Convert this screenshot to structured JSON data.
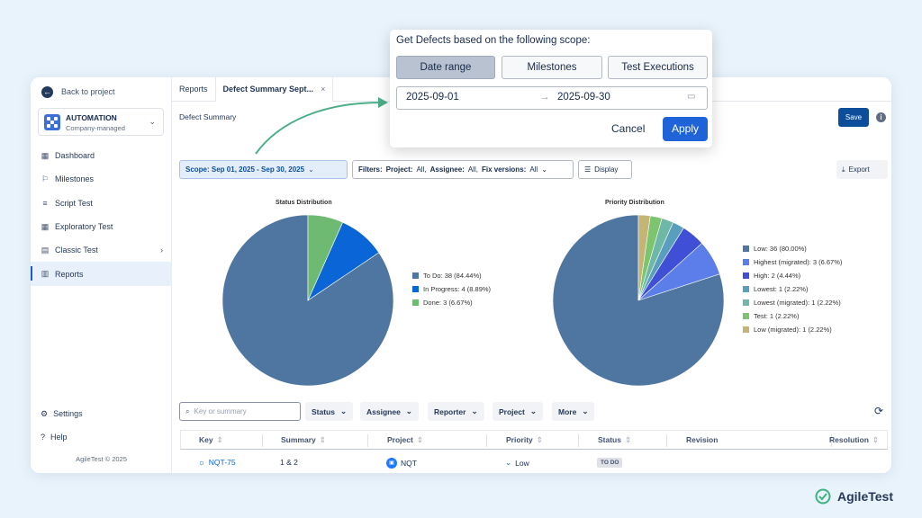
{
  "sidebar": {
    "back_label": "Back to project",
    "project_name": "AUTOMATION",
    "project_type": "Company-managed",
    "items": [
      {
        "label": "Dashboard",
        "icon": "dashboard-icon"
      },
      {
        "label": "Milestones",
        "icon": "flag-icon"
      },
      {
        "label": "Script Test",
        "icon": "script-icon"
      },
      {
        "label": "Exploratory Test",
        "icon": "grid-icon"
      },
      {
        "label": "Classic Test",
        "icon": "table-icon"
      },
      {
        "label": "Reports",
        "icon": "chart-icon",
        "active": true
      }
    ],
    "settings_label": "Settings",
    "help_label": "Help",
    "copyright": "AgileTest © 2025"
  },
  "tabs": [
    {
      "label": "Reports"
    },
    {
      "label": "Defect Summary Sept..."
    }
  ],
  "page_title": "Defect Summary",
  "save_label": "Save",
  "filters": {
    "scope": "Scope: Sep 01, 2025 - Sep 30, 2025",
    "filters_label": "Filters:",
    "project_key": "Project:",
    "project_val": "All,",
    "assignee_key": "Assignee:",
    "assignee_val": "All,",
    "fix_key": "Fix versions:",
    "fix_val": "All",
    "display_label": "Display",
    "export_label": "Export"
  },
  "chart_data": [
    {
      "type": "pie",
      "title": "Status Distribution",
      "series": [
        {
          "name": "To Do: 38 (84.44%)",
          "value": 38,
          "color": "#4e76a0"
        },
        {
          "name": "In Progress: 4 (8.89%)",
          "value": 4,
          "color": "#0a66d6"
        },
        {
          "name": "Done: 3 (6.67%)",
          "value": 3,
          "color": "#6fba72"
        }
      ],
      "legend": "right"
    },
    {
      "type": "pie",
      "title": "Priority Distribution",
      "series": [
        {
          "name": "Low: 36 (80.00%)",
          "value": 36,
          "color": "#4e76a0"
        },
        {
          "name": "Highest (migrated): 3 (6.67%)",
          "value": 3,
          "color": "#5b7ee8"
        },
        {
          "name": "High: 2 (4.44%)",
          "value": 2,
          "color": "#3f4fd6"
        },
        {
          "name": "Lowest: 1 (2.22%)",
          "value": 1,
          "color": "#5a9ebe"
        },
        {
          "name": "Lowest (migrated): 1 (2.22%)",
          "value": 1,
          "color": "#6fb8a8"
        },
        {
          "name": "Test: 1 (2.22%)",
          "value": 1,
          "color": "#7cc46e"
        },
        {
          "name": "Low (migrated): 1 (2.22%)",
          "value": 1,
          "color": "#c4b476"
        }
      ],
      "legend": "right"
    }
  ],
  "table": {
    "search_placeholder": "Key or summary",
    "filter_buttons": [
      "Status",
      "Assignee",
      "Reporter",
      "Project",
      "More"
    ],
    "columns": [
      "Key",
      "Summary",
      "Project",
      "Priority",
      "Status",
      "Revision",
      "Resolution"
    ],
    "rows": [
      {
        "key": "NQT-75",
        "summary": "1 & 2",
        "project": "NQT",
        "priority": "Low",
        "status": "TO DO"
      }
    ]
  },
  "popup": {
    "heading": "Get Defects based on the following scope:",
    "options": [
      "Date range",
      "Milestones",
      "Test Executions"
    ],
    "selected": "Date range",
    "start_date": "2025-09-01",
    "end_date": "2025-09-30",
    "cancel_label": "Cancel",
    "apply_label": "Apply"
  },
  "brand": "AgileTest",
  "colors": {
    "accent": "#1f63d8",
    "brand_green": "#3fb27f"
  }
}
